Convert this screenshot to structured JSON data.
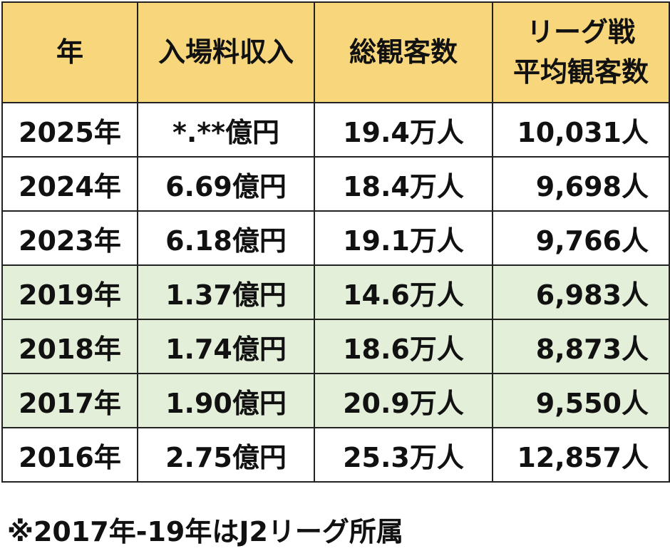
{
  "table": {
    "header": [
      [
        "年"
      ],
      [
        "入場料収入"
      ],
      [
        "総観客数"
      ],
      [
        "リーグ戦",
        "平均観客数"
      ]
    ],
    "rows": [
      [
        "2025年",
        "*.**億円",
        "19.4万人",
        "10,031人"
      ],
      [
        "2024年",
        "6.69億円",
        "18.4万人",
        "9,698人"
      ],
      [
        "2023年",
        "6.18億円",
        "19.1万人",
        "9,766人"
      ],
      [
        "2019年",
        "1.37億円",
        "14.6万人",
        "6,983人"
      ],
      [
        "2018年",
        "1.74億円",
        "18.6万人",
        "8,873人"
      ],
      [
        "2017年",
        "1.90億円",
        "20.9万人",
        "9,550人"
      ],
      [
        "2016年",
        "2.75億円",
        "25.3万人",
        "12,857人"
      ]
    ]
  },
  "footnote": "※2017年-19年はJ2リーグ所属"
}
